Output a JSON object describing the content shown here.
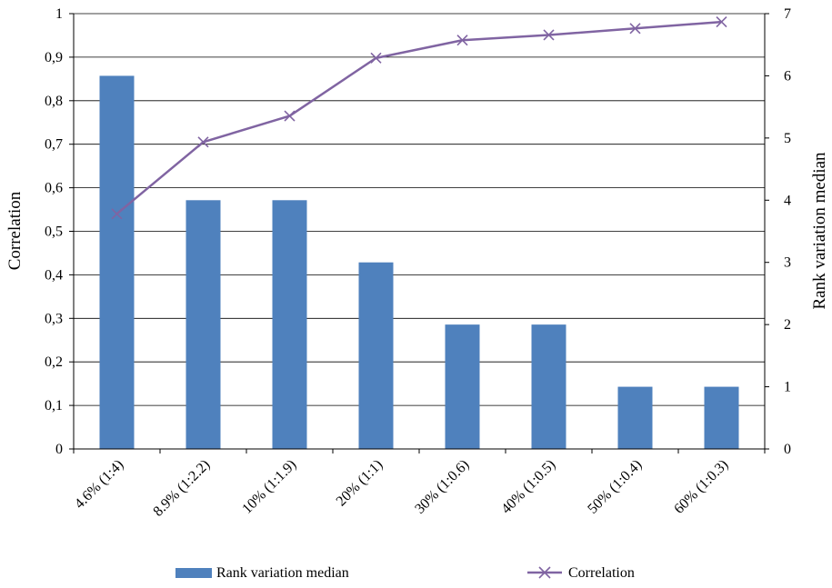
{
  "chart_data": {
    "type": "bar",
    "categories": [
      "4.6% (1:4)",
      "8.9% (1:2.2)",
      "10% (1:1.9)",
      "20% (1:1)",
      "30% (1:0.6)",
      "40% (1:0.5)",
      "50% (1:0.4)",
      "60% (1:0.3)"
    ],
    "series": [
      {
        "name": "Rank variation median",
        "type": "bar",
        "axis": "right",
        "color": "#4f81bd",
        "values": [
          6,
          4,
          4,
          3,
          2,
          2,
          1,
          1
        ]
      },
      {
        "name": "Correlation",
        "type": "line",
        "axis": "left",
        "color": "#8064a2",
        "marker": "x",
        "values": [
          0.54,
          0.705,
          0.765,
          0.898,
          0.939,
          0.951,
          0.966,
          0.981
        ]
      }
    ],
    "left_axis": {
      "label": "Correlation",
      "ylim": [
        0,
        1
      ],
      "ticks": [
        "0",
        "0,1",
        "0,2",
        "0,3",
        "0,4",
        "0,5",
        "0,6",
        "0,7",
        "0,8",
        "0,9",
        "1"
      ]
    },
    "right_axis": {
      "label": "Rank variation median",
      "ylim": [
        0,
        7
      ],
      "ticks": [
        "0",
        "1",
        "2",
        "3",
        "4",
        "5",
        "6",
        "7"
      ]
    },
    "grid": true,
    "legend_position": "bottom"
  }
}
